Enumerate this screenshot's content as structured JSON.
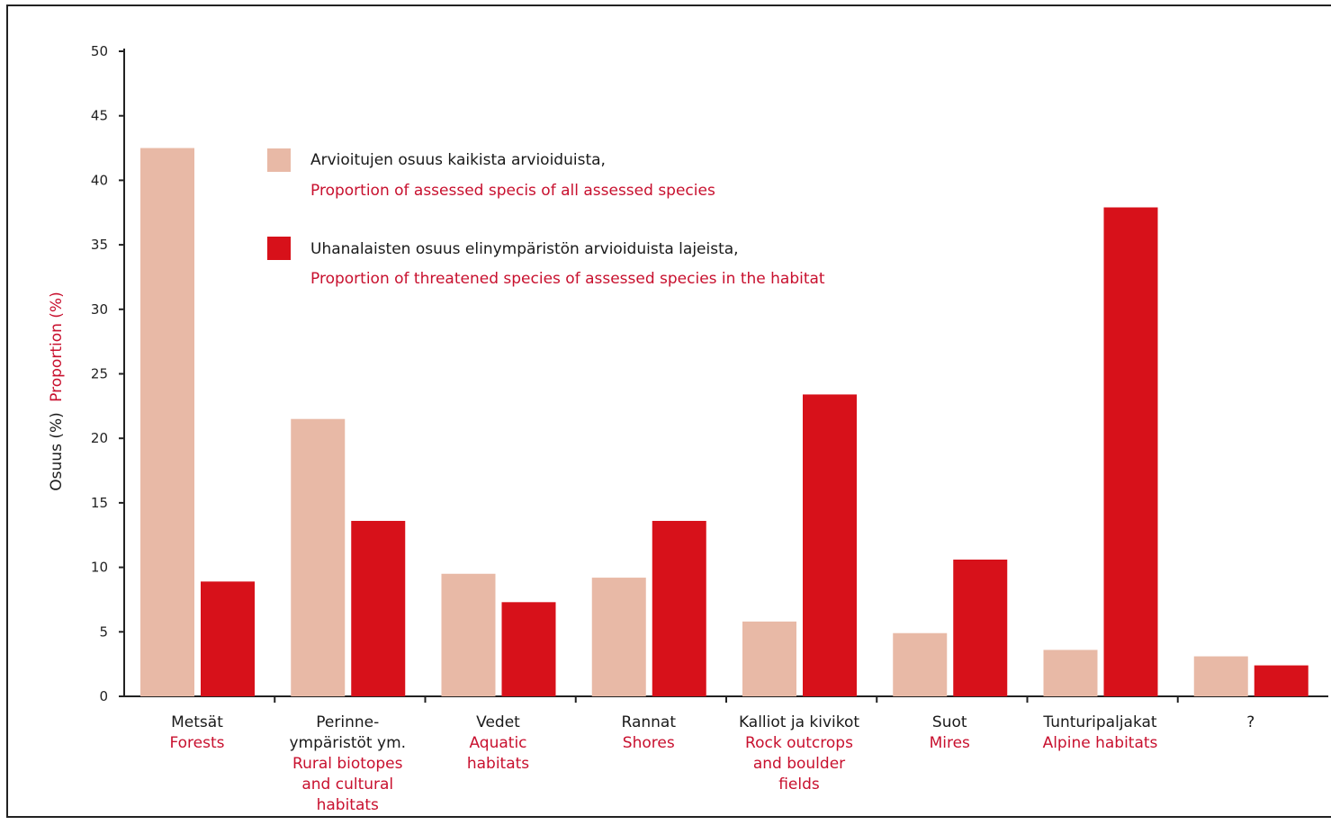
{
  "chart_data": {
    "type": "bar",
    "ylabel_fi": "Osuus (%)",
    "ylabel_en": "Proportion (%)",
    "ylim": [
      0,
      50
    ],
    "yticks": [
      "0",
      "5",
      "10",
      "15",
      "20",
      "25",
      "30",
      "35",
      "40",
      "45",
      "50"
    ],
    "grid": false,
    "legend_position": "top-center",
    "categories": [
      {
        "fi": [
          "Metsät"
        ],
        "en": [
          "Forests"
        ]
      },
      {
        "fi": [
          "Perinne-",
          "ympäristöt ym."
        ],
        "en": [
          "Rural biotopes",
          "and cultural",
          "habitats"
        ]
      },
      {
        "fi": [
          "Vedet"
        ],
        "en": [
          "Aquatic",
          "habitats"
        ]
      },
      {
        "fi": [
          "Rannat"
        ],
        "en": [
          "Shores"
        ]
      },
      {
        "fi": [
          "Kalliot ja kivikot"
        ],
        "en": [
          "Rock outcrops",
          "and boulder",
          "fields"
        ]
      },
      {
        "fi": [
          "Suot"
        ],
        "en": [
          "Mires"
        ]
      },
      {
        "fi": [
          "Tunturipaljakat"
        ],
        "en": [
          "Alpine habitats"
        ]
      },
      {
        "fi": [
          "?"
        ],
        "en": []
      }
    ],
    "series": [
      {
        "name_fi": "Arvioitujen osuus kaikista arvioiduista,",
        "name_en": "Proportion of assessed specis of all assessed species",
        "color": "#e8b9a6",
        "values": [
          42.5,
          21.5,
          9.5,
          9.2,
          5.8,
          4.9,
          3.6,
          3.1
        ]
      },
      {
        "name_fi": "Uhanalaisten osuus elinympäristön arvioiduista lajeista,",
        "name_en": "Proportion of threatened species of assessed species in the habitat",
        "color": "#d7111a",
        "values": [
          8.9,
          13.6,
          7.3,
          13.6,
          23.4,
          10.6,
          37.9,
          2.4
        ]
      }
    ]
  }
}
